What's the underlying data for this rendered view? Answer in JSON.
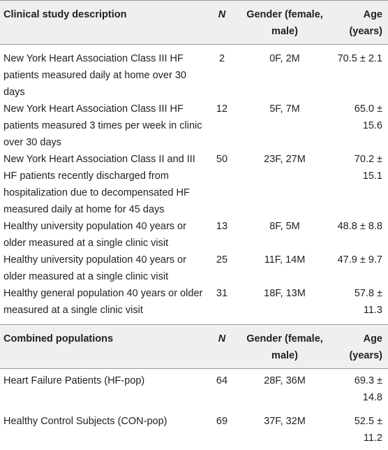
{
  "sections": [
    {
      "header": [
        "Clinical study description",
        "N",
        "Gender (female, male)",
        "Age (years)"
      ],
      "rows": [
        [
          "New York Heart Association Class III HF patients measured daily at home over 30 days",
          "2",
          "0F, 2M",
          "70.5 ± 2.1"
        ],
        [
          "New York Heart Association Class III HF patients measured 3 times per week in clinic over 30 days",
          "12",
          "5F, 7M",
          "65.0 ± 15.6"
        ],
        [
          "New York Heart Association Class II and III HF patients recently discharged from hospitalization due to decompensated HF measured daily at home for 45 days",
          "50",
          "23F, 27M",
          "70.2 ± 15.1"
        ],
        [
          "Healthy university population 40 years or older measured at a single clinic visit",
          "13",
          "8F, 5M",
          "48.8 ± 8.8"
        ],
        [
          "Healthy university population 40 years or older measured at a single clinic visit",
          "25",
          "11F, 14M",
          "47.9 ± 9.7"
        ],
        [
          "Healthy general population 40 years or older measured at a single clinic visit",
          "31",
          "18F, 13M",
          "57.8 ± 11.3"
        ]
      ]
    },
    {
      "header": [
        "Combined populations",
        "N",
        "Gender (female, male)",
        "Age (years)"
      ],
      "rows": [
        [
          "Heart Failure Patients (HF-pop)",
          "64",
          "28F, 36M",
          "69.3 ± 14.8"
        ],
        [
          "Healthy Control Subjects (CON-pop)",
          "69",
          "37F, 32M",
          "52.5 ± 11.2"
        ]
      ]
    }
  ]
}
